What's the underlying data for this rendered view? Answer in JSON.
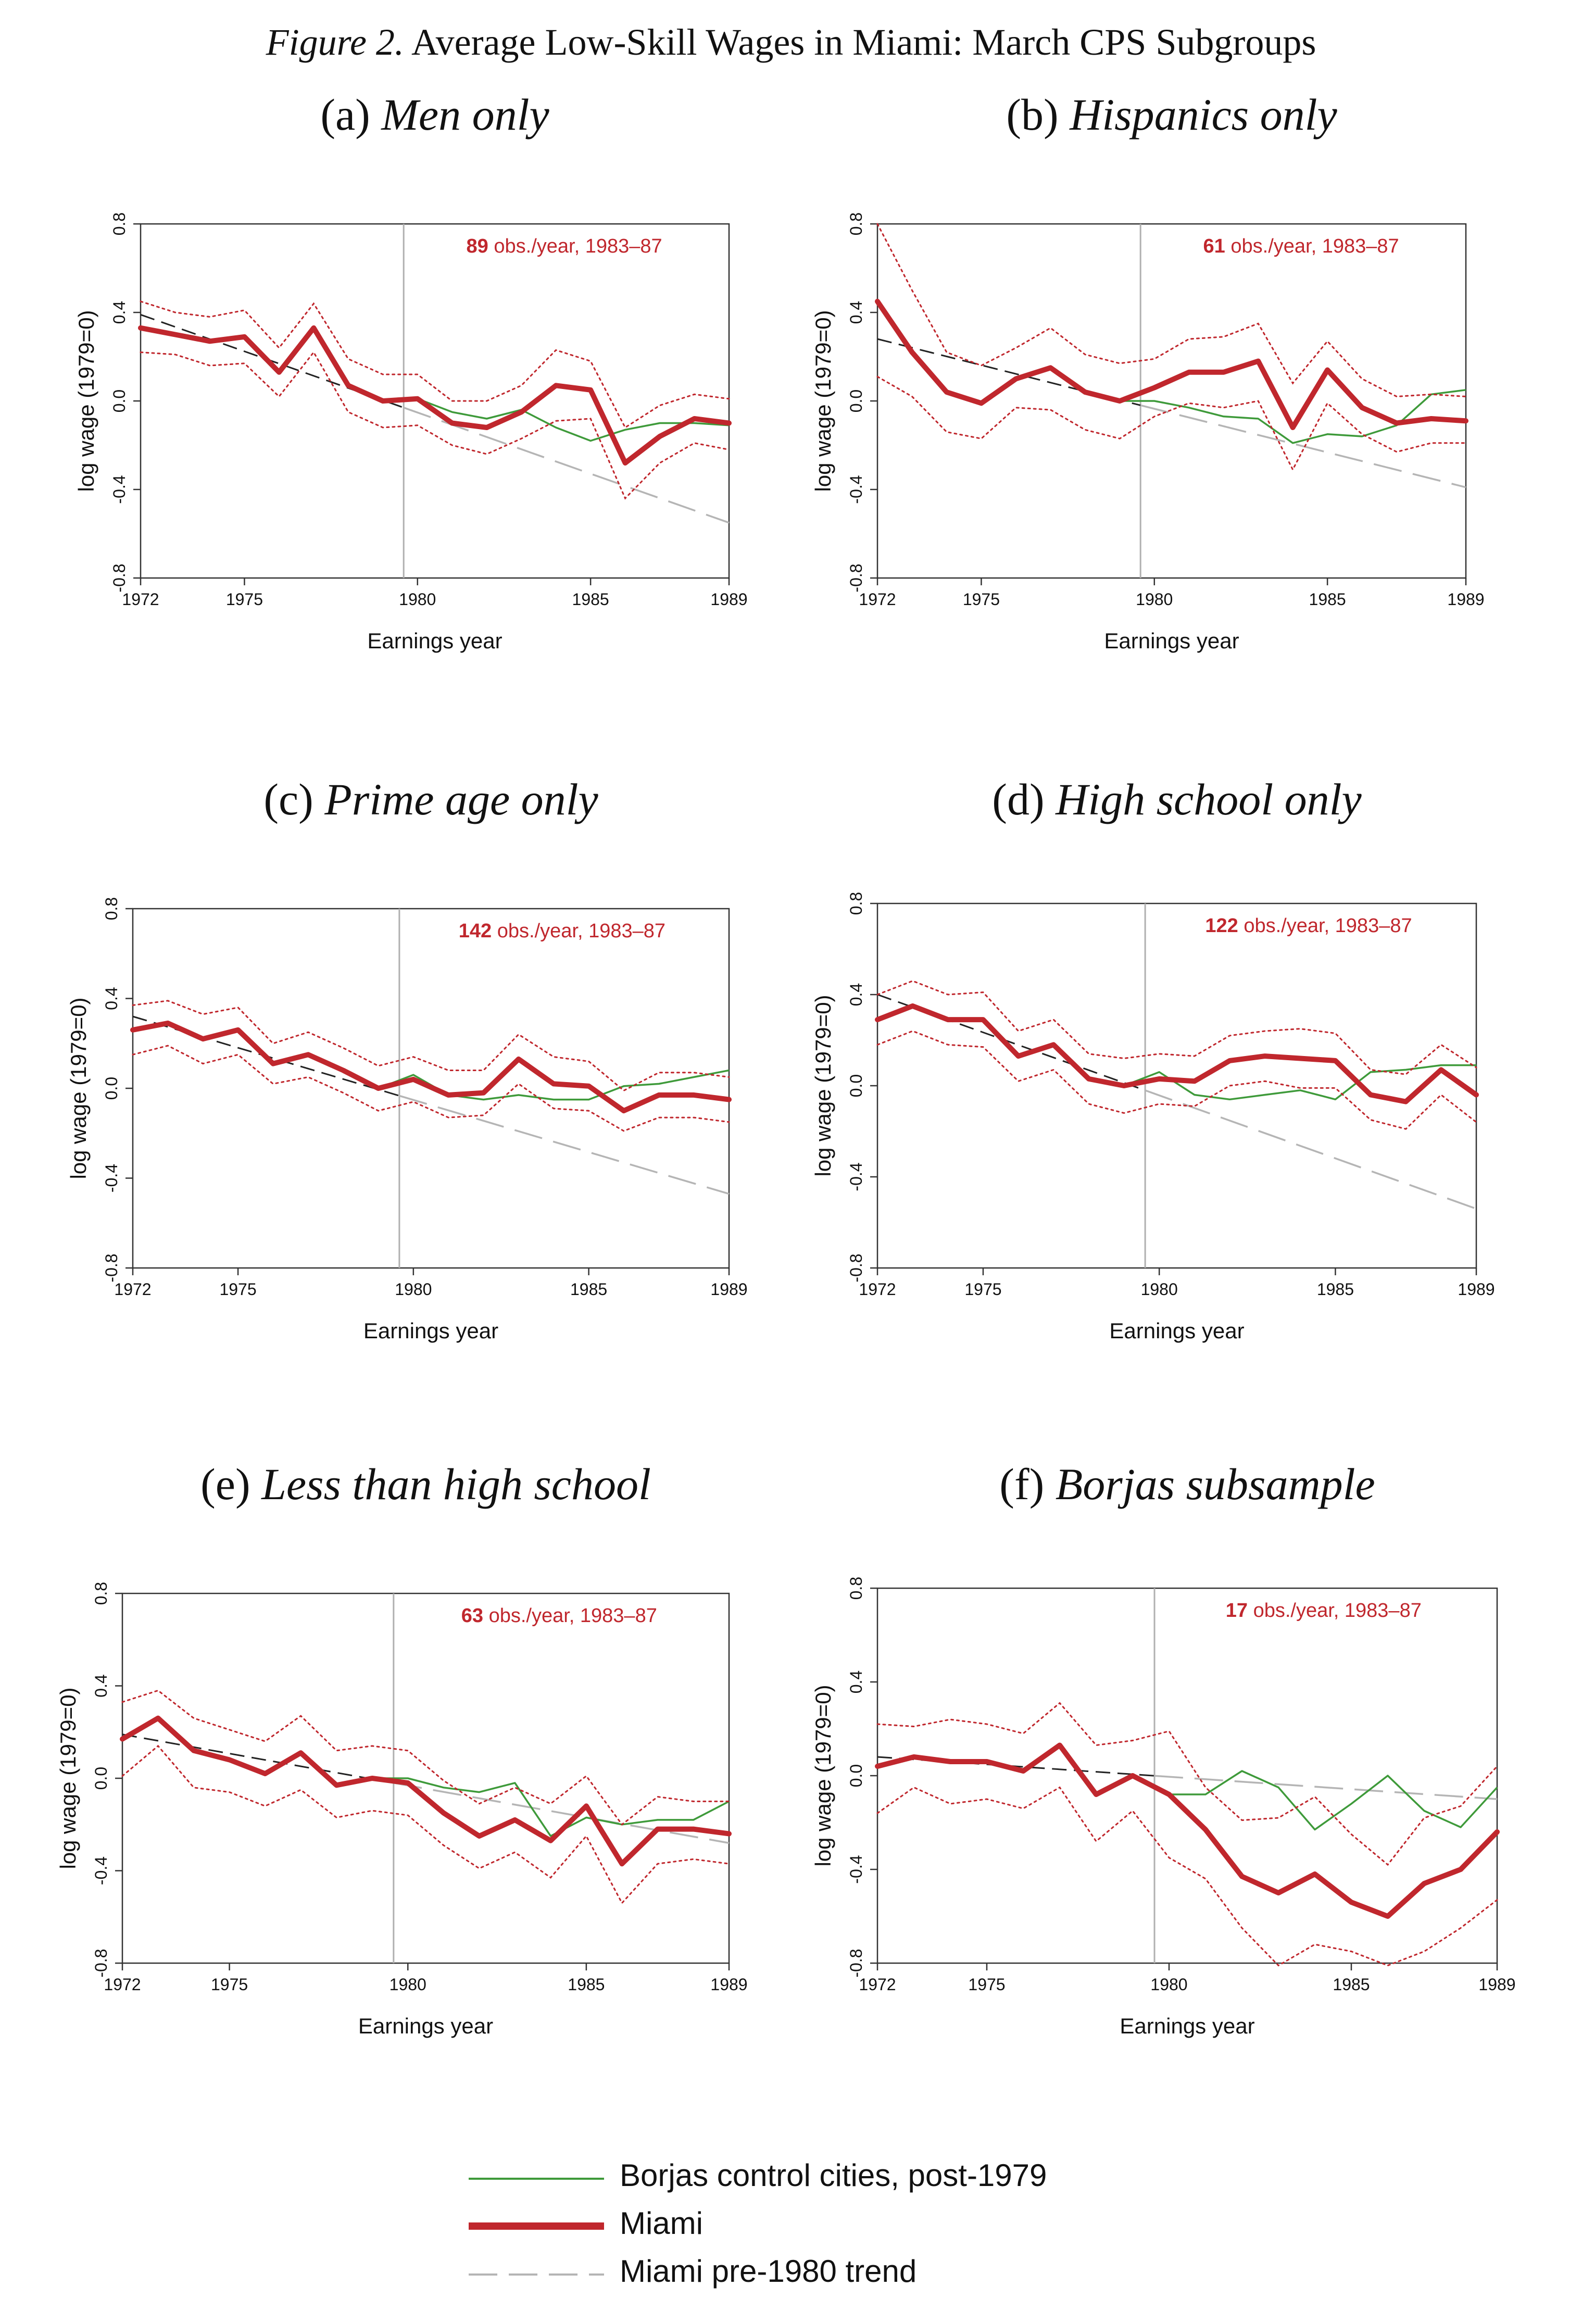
{
  "figure": {
    "number_label": "Figure 2.",
    "title": "Average Low-Skill Wages in Miami: March CPS Subgroups"
  },
  "colors": {
    "miami": "#c0272d",
    "control": "#3e9a3a",
    "trend_pre": "#222222",
    "trend_post": "#b5b5b5",
    "vline": "#b0b0b0",
    "frame": "#333333"
  },
  "legend": [
    {
      "key": "control",
      "label": "Borjas control cities, post-1979"
    },
    {
      "key": "miami",
      "label": "Miami"
    },
    {
      "key": "trend",
      "label": "Miami pre-1980 trend"
    }
  ],
  "chart_data": [
    {
      "type": "line",
      "panel_label": "(a)",
      "subtitle": "Men only",
      "xlabel": "Earnings year",
      "ylabel": "log wage (1979=0)",
      "xlim": [
        1972,
        1989
      ],
      "ylim": [
        -0.8,
        0.8
      ],
      "xticks": [
        1972,
        1975,
        1980,
        1985,
        1989
      ],
      "yticks": [
        "0.8",
        "0.4",
        "0.0",
        "-0.4",
        "-0.8"
      ],
      "yticks_values": [
        0.8,
        0.4,
        0.0,
        -0.4,
        -0.8
      ],
      "vline": 1979.6,
      "annotation": {
        "bold": "89",
        "text": " obs./year, 1983–87"
      },
      "x": [
        1972,
        1973,
        1974,
        1975,
        1976,
        1977,
        1978,
        1979,
        1980,
        1981,
        1982,
        1983,
        1984,
        1985,
        1986,
        1987,
        1988,
        1989
      ],
      "series": [
        {
          "key": "miami",
          "values": [
            0.33,
            0.3,
            0.27,
            0.29,
            0.13,
            0.33,
            0.07,
            0.0,
            0.01,
            -0.1,
            -0.12,
            -0.05,
            0.07,
            0.05,
            -0.28,
            -0.16,
            -0.08,
            -0.1
          ]
        },
        {
          "key": "miami_upper",
          "values": [
            0.45,
            0.4,
            0.38,
            0.41,
            0.24,
            0.44,
            0.19,
            0.12,
            0.12,
            0.0,
            0.0,
            0.07,
            0.23,
            0.18,
            -0.12,
            -0.02,
            0.03,
            0.01
          ]
        },
        {
          "key": "miami_lower",
          "values": [
            0.22,
            0.21,
            0.16,
            0.17,
            0.02,
            0.22,
            -0.05,
            -0.12,
            -0.11,
            -0.2,
            -0.24,
            -0.17,
            -0.09,
            -0.08,
            -0.44,
            -0.28,
            -0.19,
            -0.22
          ]
        },
        {
          "key": "control",
          "x": [
            1979,
            1980,
            1981,
            1982,
            1983,
            1984,
            1985,
            1986,
            1987,
            1988,
            1989
          ],
          "values": [
            0.0,
            0.01,
            -0.05,
            -0.08,
            -0.04,
            -0.12,
            -0.18,
            -0.13,
            -0.1,
            -0.1,
            -0.11
          ]
        },
        {
          "key": "trend",
          "x": [
            1972,
            1989
          ],
          "values": [
            0.39,
            -0.55
          ],
          "break_at": 1979.6
        }
      ]
    },
    {
      "type": "line",
      "panel_label": "(b)",
      "subtitle": "Hispanics only",
      "xlabel": "Earnings year",
      "ylabel": "log wage (1979=0)",
      "xlim": [
        1972,
        1989
      ],
      "ylim": [
        -0.8,
        0.8
      ],
      "xticks": [
        1972,
        1975,
        1980,
        1985,
        1989
      ],
      "yticks": [
        "0.8",
        "0.4",
        "0.0",
        "-0.4",
        "-0.8"
      ],
      "yticks_values": [
        0.8,
        0.4,
        0.0,
        -0.4,
        -0.8
      ],
      "vline": 1979.6,
      "annotation": {
        "bold": "61",
        "text": " obs./year, 1983–87"
      },
      "x": [
        1972,
        1973,
        1974,
        1975,
        1976,
        1977,
        1978,
        1979,
        1980,
        1981,
        1982,
        1983,
        1984,
        1985,
        1986,
        1987,
        1988,
        1989
      ],
      "series": [
        {
          "key": "miami",
          "values": [
            0.45,
            0.22,
            0.04,
            -0.01,
            0.1,
            0.15,
            0.04,
            0.0,
            0.06,
            0.13,
            0.13,
            0.18,
            -0.12,
            0.14,
            -0.03,
            -0.1,
            -0.08,
            -0.09
          ]
        },
        {
          "key": "miami_upper",
          "values": [
            0.8,
            0.5,
            0.22,
            0.16,
            0.24,
            0.33,
            0.21,
            0.17,
            0.19,
            0.28,
            0.29,
            0.35,
            0.08,
            0.27,
            0.1,
            0.02,
            0.03,
            0.02
          ]
        },
        {
          "key": "miami_lower",
          "values": [
            0.11,
            0.02,
            -0.14,
            -0.17,
            -0.03,
            -0.04,
            -0.13,
            -0.17,
            -0.07,
            -0.01,
            -0.03,
            0.0,
            -0.31,
            -0.01,
            -0.15,
            -0.23,
            -0.19,
            -0.19
          ]
        },
        {
          "key": "control",
          "x": [
            1979,
            1980,
            1981,
            1982,
            1983,
            1984,
            1985,
            1986,
            1987,
            1988,
            1989
          ],
          "values": [
            0.0,
            0.0,
            -0.03,
            -0.07,
            -0.08,
            -0.19,
            -0.15,
            -0.16,
            -0.11,
            0.03,
            0.05
          ]
        },
        {
          "key": "trend",
          "x": [
            1972,
            1989
          ],
          "values": [
            0.28,
            -0.39
          ],
          "break_at": 1979.6
        }
      ]
    },
    {
      "type": "line",
      "panel_label": "(c)",
      "subtitle": "Prime age only",
      "xlabel": "Earnings year",
      "ylabel": "log wage (1979=0)",
      "xlim": [
        1972,
        1989
      ],
      "ylim": [
        -0.8,
        0.8
      ],
      "xticks": [
        1972,
        1975,
        1980,
        1985,
        1989
      ],
      "yticks": [
        "0.8",
        "0.4",
        "0.0",
        "-0.4",
        "-0.8"
      ],
      "yticks_values": [
        0.8,
        0.4,
        0.0,
        -0.4,
        -0.8
      ],
      "vline": 1979.6,
      "annotation": {
        "bold": "142",
        "text": " obs./year, 1983–87"
      },
      "x": [
        1972,
        1973,
        1974,
        1975,
        1976,
        1977,
        1978,
        1979,
        1980,
        1981,
        1982,
        1983,
        1984,
        1985,
        1986,
        1987,
        1988,
        1989
      ],
      "series": [
        {
          "key": "miami",
          "values": [
            0.26,
            0.29,
            0.22,
            0.26,
            0.11,
            0.15,
            0.08,
            0.0,
            0.04,
            -0.03,
            -0.02,
            0.13,
            0.02,
            0.01,
            -0.1,
            -0.03,
            -0.03,
            -0.05
          ]
        },
        {
          "key": "miami_upper",
          "values": [
            0.37,
            0.39,
            0.33,
            0.36,
            0.2,
            0.25,
            0.18,
            0.1,
            0.14,
            0.08,
            0.08,
            0.24,
            0.14,
            0.12,
            -0.01,
            0.07,
            0.07,
            0.05
          ]
        },
        {
          "key": "miami_lower",
          "values": [
            0.15,
            0.19,
            0.11,
            0.15,
            0.02,
            0.05,
            -0.02,
            -0.1,
            -0.06,
            -0.13,
            -0.12,
            0.02,
            -0.09,
            -0.1,
            -0.19,
            -0.13,
            -0.13,
            -0.15
          ]
        },
        {
          "key": "control",
          "x": [
            1979,
            1980,
            1981,
            1982,
            1983,
            1984,
            1985,
            1986,
            1987,
            1988,
            1989
          ],
          "values": [
            0.0,
            0.06,
            -0.03,
            -0.05,
            -0.03,
            -0.05,
            -0.05,
            0.01,
            0.02,
            0.05,
            0.08
          ]
        },
        {
          "key": "trend",
          "x": [
            1972,
            1989
          ],
          "values": [
            0.32,
            -0.47
          ],
          "break_at": 1979.6
        }
      ]
    },
    {
      "type": "line",
      "panel_label": "(d)",
      "subtitle": "High school only",
      "xlabel": "Earnings year",
      "ylabel": "log wage (1979=0)",
      "xlim": [
        1972,
        1989
      ],
      "ylim": [
        -0.8,
        0.8
      ],
      "xticks": [
        1972,
        1975,
        1980,
        1985,
        1989
      ],
      "yticks": [
        "0.8",
        "0.4",
        "0.0",
        "-0.4",
        "-0.8"
      ],
      "yticks_values": [
        0.8,
        0.4,
        0.0,
        -0.4,
        -0.8
      ],
      "vline": 1979.6,
      "annotation": {
        "bold": "122",
        "text": " obs./year, 1983–87"
      },
      "x": [
        1972,
        1973,
        1974,
        1975,
        1976,
        1977,
        1978,
        1979,
        1980,
        1981,
        1982,
        1983,
        1984,
        1985,
        1986,
        1987,
        1988,
        1989
      ],
      "series": [
        {
          "key": "miami",
          "values": [
            0.29,
            0.35,
            0.29,
            0.29,
            0.13,
            0.18,
            0.03,
            0.0,
            0.03,
            0.02,
            0.11,
            0.13,
            0.12,
            0.11,
            -0.04,
            -0.07,
            0.07,
            -0.04
          ]
        },
        {
          "key": "miami_upper",
          "values": [
            0.4,
            0.46,
            0.4,
            0.41,
            0.24,
            0.29,
            0.14,
            0.12,
            0.14,
            0.13,
            0.22,
            0.24,
            0.25,
            0.23,
            0.07,
            0.05,
            0.18,
            0.08
          ]
        },
        {
          "key": "miami_lower",
          "values": [
            0.18,
            0.24,
            0.18,
            0.17,
            0.02,
            0.07,
            -0.08,
            -0.12,
            -0.08,
            -0.09,
            0.0,
            0.02,
            -0.01,
            -0.01,
            -0.15,
            -0.19,
            -0.04,
            -0.16
          ]
        },
        {
          "key": "control",
          "x": [
            1979,
            1980,
            1981,
            1982,
            1983,
            1984,
            1985,
            1986,
            1987,
            1988,
            1989
          ],
          "values": [
            0.0,
            0.06,
            -0.04,
            -0.06,
            -0.04,
            -0.02,
            -0.06,
            0.06,
            0.07,
            0.09,
            0.09
          ]
        },
        {
          "key": "trend",
          "x": [
            1972,
            1989
          ],
          "values": [
            0.4,
            -0.54
          ],
          "break_at": 1979.6
        }
      ]
    },
    {
      "type": "line",
      "panel_label": "(e)",
      "subtitle": "Less than high school",
      "xlabel": "Earnings year",
      "ylabel": "log wage (1979=0)",
      "xlim": [
        1972,
        1989
      ],
      "ylim": [
        -0.8,
        0.8
      ],
      "xticks": [
        1972,
        1975,
        1980,
        1985,
        1989
      ],
      "yticks": [
        "0.8",
        "0.4",
        "0.0",
        "-0.4",
        "-0.8"
      ],
      "yticks_values": [
        0.8,
        0.4,
        0.0,
        -0.4,
        -0.8
      ],
      "vline": 1979.6,
      "annotation": {
        "bold": "63",
        "text": " obs./year, 1983–87"
      },
      "x": [
        1972,
        1973,
        1974,
        1975,
        1976,
        1977,
        1978,
        1979,
        1980,
        1981,
        1982,
        1983,
        1984,
        1985,
        1986,
        1987,
        1988,
        1989
      ],
      "series": [
        {
          "key": "miami",
          "values": [
            0.17,
            0.26,
            0.12,
            0.08,
            0.02,
            0.11,
            -0.03,
            0.0,
            -0.02,
            -0.15,
            -0.25,
            -0.18,
            -0.27,
            -0.12,
            -0.37,
            -0.22,
            -0.22,
            -0.24
          ]
        },
        {
          "key": "miami_upper",
          "values": [
            0.33,
            0.38,
            0.26,
            0.21,
            0.16,
            0.27,
            0.12,
            0.14,
            0.12,
            -0.01,
            -0.11,
            -0.04,
            -0.11,
            0.01,
            -0.2,
            -0.08,
            -0.1,
            -0.1
          ]
        },
        {
          "key": "miami_lower",
          "values": [
            0.01,
            0.14,
            -0.04,
            -0.06,
            -0.12,
            -0.05,
            -0.17,
            -0.14,
            -0.16,
            -0.29,
            -0.39,
            -0.32,
            -0.43,
            -0.25,
            -0.54,
            -0.37,
            -0.35,
            -0.37
          ]
        },
        {
          "key": "control",
          "x": [
            1979,
            1980,
            1981,
            1982,
            1983,
            1984,
            1985,
            1986,
            1987,
            1988,
            1989
          ],
          "values": [
            0.0,
            0.0,
            -0.04,
            -0.06,
            -0.02,
            -0.25,
            -0.17,
            -0.2,
            -0.18,
            -0.18,
            -0.1
          ]
        },
        {
          "key": "trend",
          "x": [
            1972,
            1989
          ],
          "values": [
            0.19,
            -0.28
          ],
          "break_at": 1979.6
        }
      ]
    },
    {
      "type": "line",
      "panel_label": "(f)",
      "subtitle": "Borjas subsample",
      "xlabel": "Earnings year",
      "ylabel": "log wage (1979=0)",
      "xlim": [
        1972,
        1989
      ],
      "ylim": [
        -0.8,
        0.8
      ],
      "xticks": [
        1972,
        1975,
        1980,
        1985,
        1989
      ],
      "yticks": [
        "0.8",
        "0.4",
        "0.0",
        "-0.4",
        "-0.8"
      ],
      "yticks_values": [
        0.8,
        0.4,
        0.0,
        -0.4,
        -0.8
      ],
      "vline": 1979.6,
      "annotation": {
        "bold": "17",
        "text": " obs./year, 1983–87"
      },
      "x": [
        1972,
        1973,
        1974,
        1975,
        1976,
        1977,
        1978,
        1979,
        1980,
        1981,
        1982,
        1983,
        1984,
        1985,
        1986,
        1987,
        1988,
        1989
      ],
      "series": [
        {
          "key": "miami",
          "values": [
            0.04,
            0.08,
            0.06,
            0.06,
            0.02,
            0.13,
            -0.08,
            0.0,
            -0.08,
            -0.23,
            -0.43,
            -0.5,
            -0.42,
            -0.54,
            -0.6,
            -0.46,
            -0.4,
            -0.24
          ]
        },
        {
          "key": "miami_upper",
          "values": [
            0.22,
            0.21,
            0.24,
            0.22,
            0.18,
            0.31,
            0.13,
            0.15,
            0.19,
            -0.05,
            -0.19,
            -0.18,
            -0.09,
            -0.25,
            -0.38,
            -0.18,
            -0.13,
            0.04
          ]
        },
        {
          "key": "miami_lower",
          "values": [
            -0.16,
            -0.05,
            -0.12,
            -0.1,
            -0.14,
            -0.05,
            -0.28,
            -0.15,
            -0.35,
            -0.44,
            -0.65,
            -0.81,
            -0.72,
            -0.75,
            -0.81,
            -0.75,
            -0.65,
            -0.53
          ]
        },
        {
          "key": "control",
          "x": [
            1979,
            1980,
            1981,
            1982,
            1983,
            1984,
            1985,
            1986,
            1987,
            1988,
            1989
          ],
          "values": [
            0.0,
            -0.08,
            -0.08,
            0.02,
            -0.05,
            -0.23,
            -0.12,
            0.0,
            -0.15,
            -0.22,
            -0.05
          ]
        },
        {
          "key": "trend",
          "x": [
            1972,
            1989
          ],
          "values": [
            0.08,
            -0.1
          ],
          "break_at": 1979.6
        }
      ]
    }
  ]
}
